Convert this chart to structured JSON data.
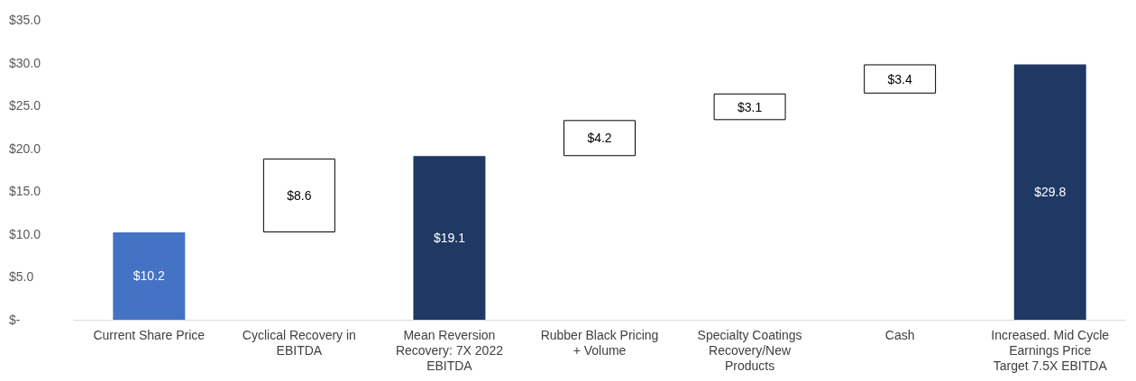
{
  "chart_data": {
    "type": "bar",
    "categories": [
      "Current Share Price",
      "Cyclical Recovery in EBITDA",
      "Mean Reversion Recovery: 7X 2022 EBITDA",
      "Rubber Black Pricing + Volume",
      "Specialty Coatings Recovery/New Products",
      "Cash",
      "Increased. Mid Cycle Earnings Price Target 7.5X EBITDA"
    ],
    "values": [
      10.2,
      8.6,
      19.1,
      4.2,
      3.1,
      3.4,
      29.8
    ],
    "base": [
      0,
      10.2,
      0,
      19.1,
      23.3,
      26.4,
      0
    ],
    "colors": [
      "#4472c4",
      "#ffffff",
      "#1f3864",
      "#ffffff",
      "#ffffff",
      "#ffffff",
      "#1f3864"
    ],
    "value_labels": [
      "$10.2",
      "$8.6",
      "$19.1",
      "$4.2",
      "$3.1",
      "$3.4",
      "$29.8"
    ],
    "ylim": [
      0,
      35
    ],
    "yticks": [
      {
        "value": 0,
        "label": "$-"
      },
      {
        "value": 5,
        "label": "$5.0"
      },
      {
        "value": 10,
        "label": "$10.0"
      },
      {
        "value": 15,
        "label": "$15.0"
      },
      {
        "value": 20,
        "label": "$20.0"
      },
      {
        "value": 25,
        "label": "$25.0"
      },
      {
        "value": 30,
        "label": "$30.0"
      },
      {
        "value": 35,
        "label": "$35.0"
      }
    ],
    "grid": false
  }
}
